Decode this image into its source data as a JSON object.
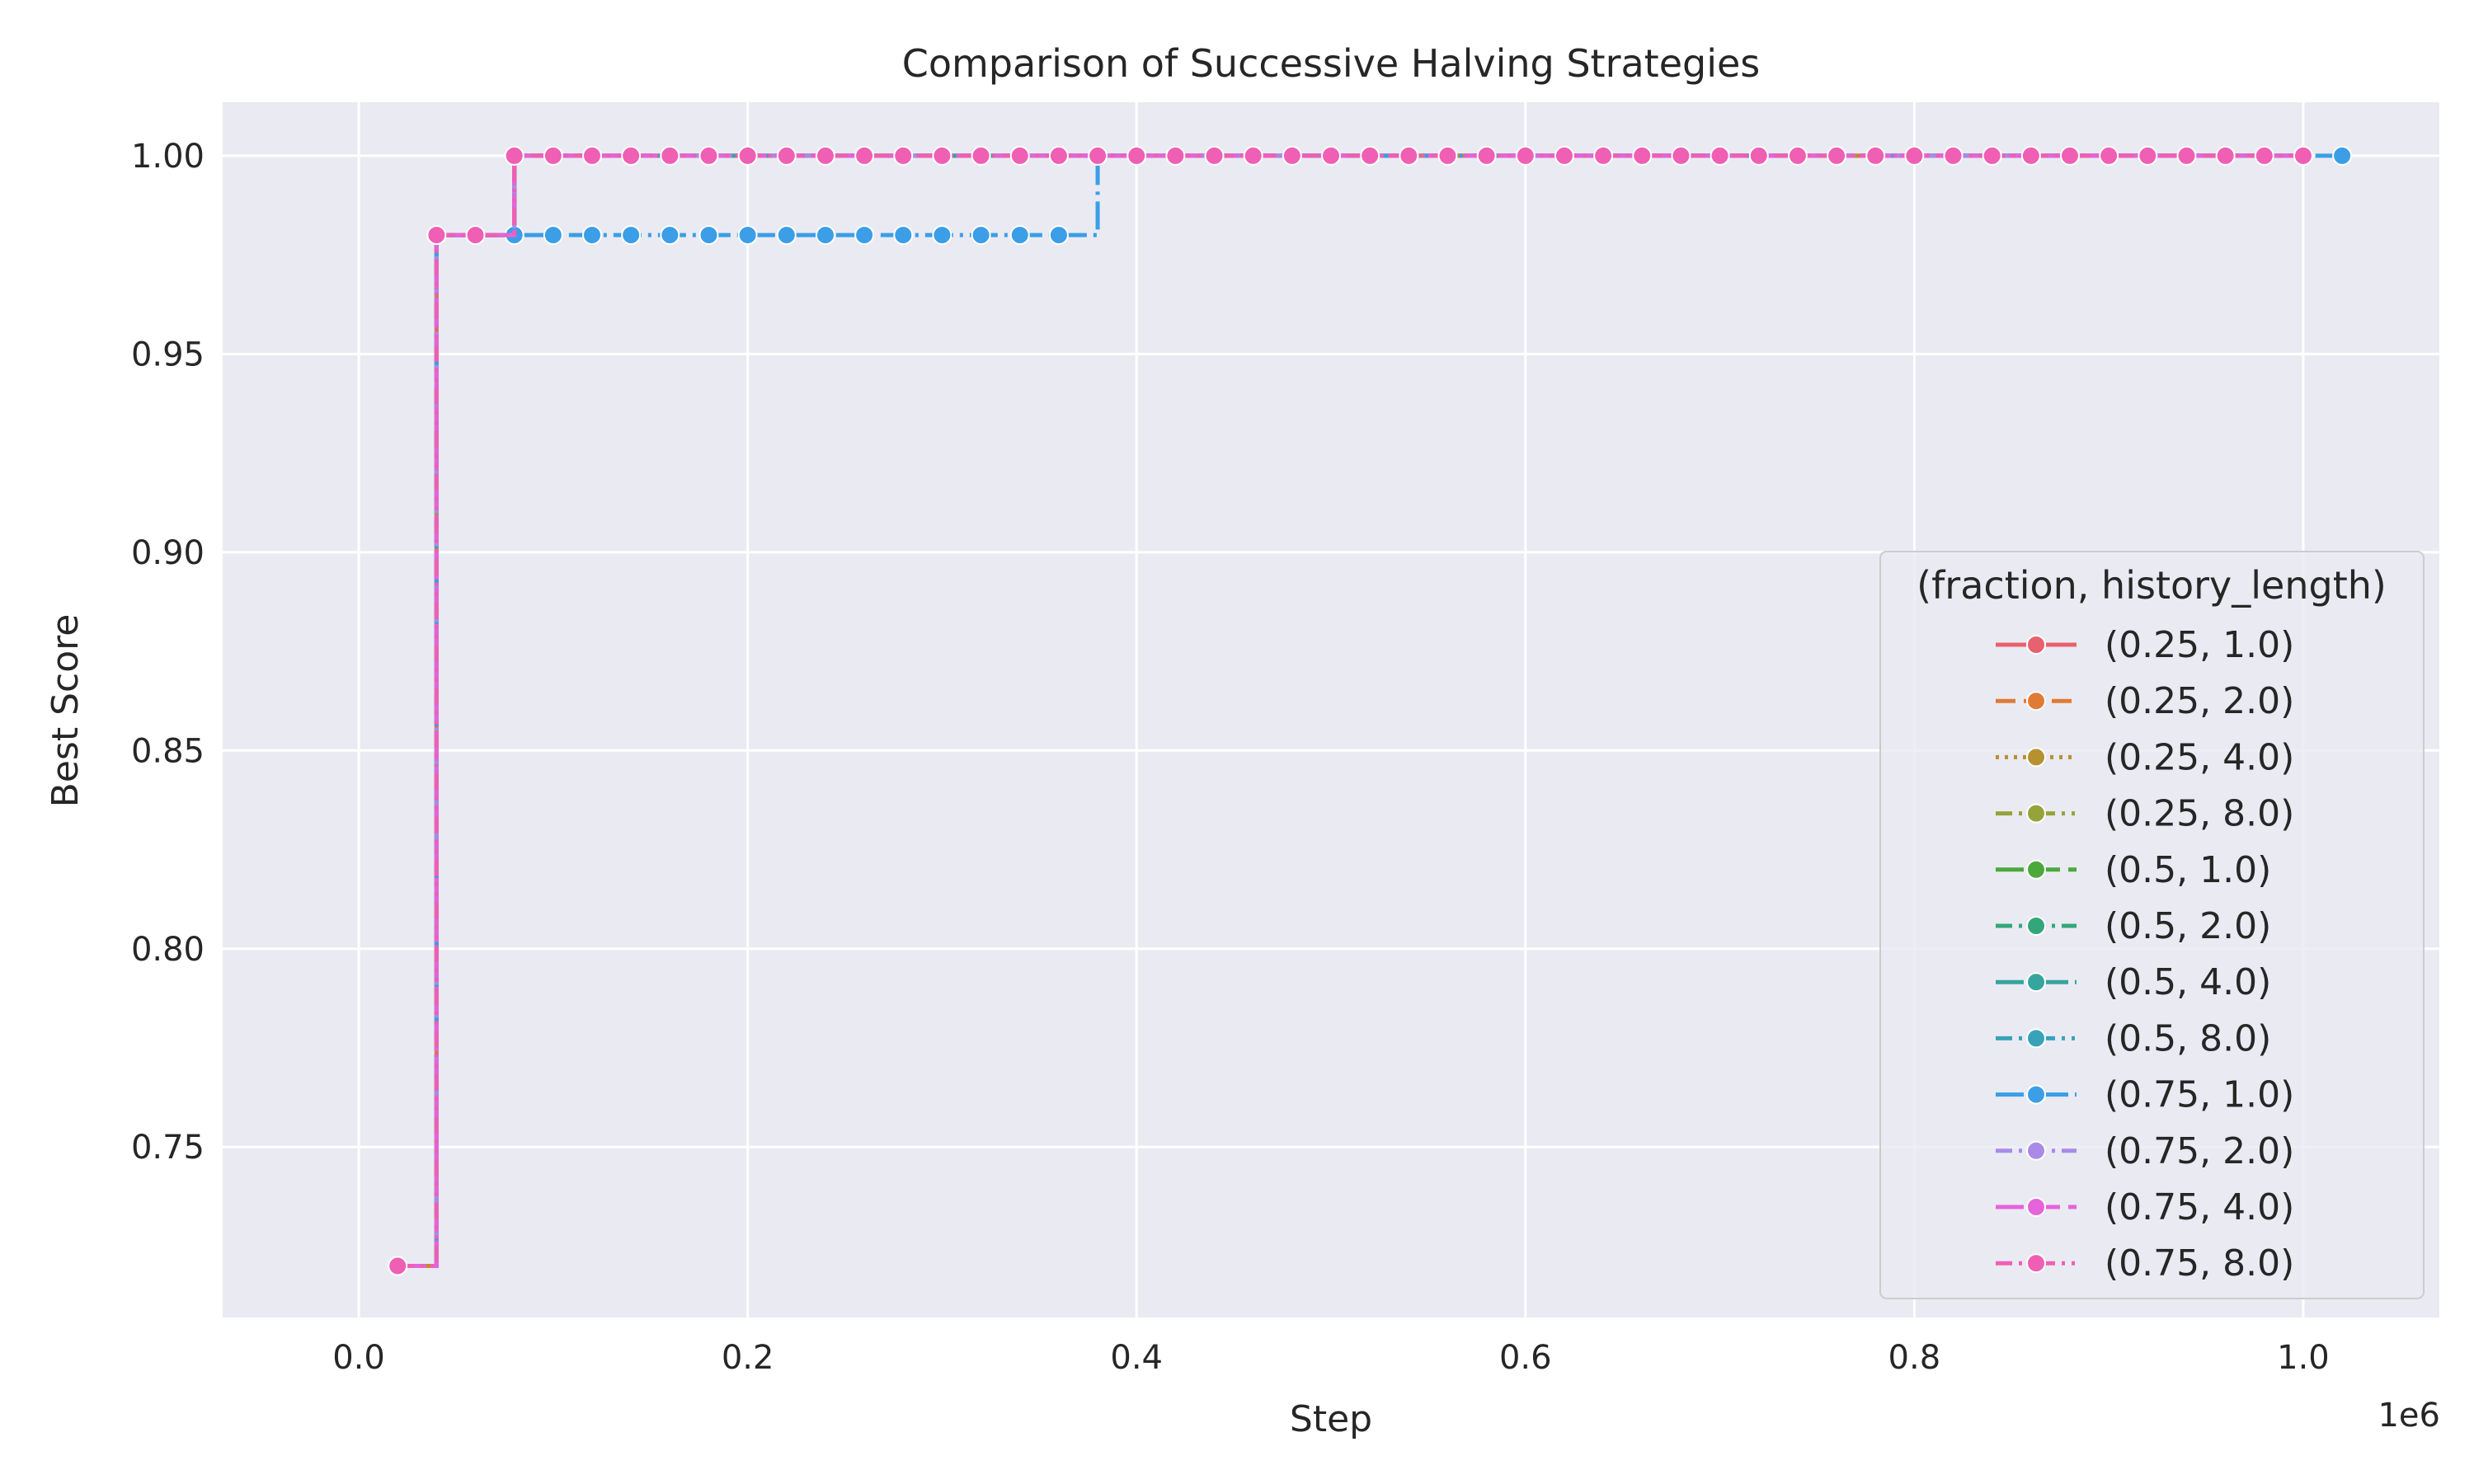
{
  "chart_data": {
    "type": "line",
    "title": "Comparison of Successive Halving Strategies",
    "xlabel": "Step",
    "ylabel": "Best Score",
    "x_offset_text": "1e6",
    "xlim": [
      -70000,
      1070000
    ],
    "ylim": [
      0.707,
      1.0135
    ],
    "x_ticks": [
      0,
      200000,
      400000,
      600000,
      800000,
      1000000
    ],
    "x_tick_labels": [
      "0.0",
      "0.2",
      "0.4",
      "0.6",
      "0.8",
      "1.0"
    ],
    "y_ticks": [
      0.75,
      0.8,
      0.85,
      0.9,
      0.95,
      1.0
    ],
    "y_tick_labels": [
      "0.75",
      "0.80",
      "0.85",
      "0.90",
      "0.95",
      "1.00"
    ],
    "grid": true,
    "background": "#eaeaf2",
    "legend": {
      "title": "(fraction, history_length)",
      "placement": "lower-right"
    },
    "series": [
      {
        "name": "(0.25, 1.0)",
        "color": "#e8616e",
        "dash": "solid",
        "x": [
          20000,
          40000,
          80000,
          1000000
        ],
        "y": [
          0.72,
          0.98,
          1.0,
          1.0
        ]
      },
      {
        "name": "(0.25, 2.0)",
        "color": "#e07b35",
        "dash": "dash",
        "x": [
          20000,
          40000,
          80000,
          1000000
        ],
        "y": [
          0.72,
          0.98,
          1.0,
          1.0
        ]
      },
      {
        "name": "(0.25, 4.0)",
        "color": "#b5922f",
        "dash": "dot",
        "x": [
          20000,
          40000,
          80000,
          1000000
        ],
        "y": [
          0.72,
          0.98,
          1.0,
          1.0
        ]
      },
      {
        "name": "(0.25, 8.0)",
        "color": "#96a33a",
        "dash": "dashdotdot",
        "x": [
          20000,
          40000,
          80000,
          1000000
        ],
        "y": [
          0.72,
          0.98,
          1.0,
          1.0
        ]
      },
      {
        "name": "(0.5, 1.0)",
        "color": "#4aa93a",
        "dash": "longdash",
        "x": [
          20000,
          40000,
          80000,
          1000000
        ],
        "y": [
          0.72,
          0.98,
          1.0,
          1.0
        ]
      },
      {
        "name": "(0.5, 2.0)",
        "color": "#33a77a",
        "dash": "dashdot",
        "x": [
          20000,
          40000,
          80000,
          1000000
        ],
        "y": [
          0.72,
          0.98,
          1.0,
          1.0
        ]
      },
      {
        "name": "(0.5, 4.0)",
        "color": "#35a59d",
        "dash": "longdashdot",
        "x": [
          20000,
          40000,
          80000,
          1000000
        ],
        "y": [
          0.72,
          0.98,
          1.0,
          1.0
        ]
      },
      {
        "name": "(0.5, 8.0)",
        "color": "#38a3b8",
        "dash": "dashdotdot",
        "x": [
          20000,
          40000,
          80000,
          1000000
        ],
        "y": [
          0.72,
          0.98,
          1.0,
          1.0
        ]
      },
      {
        "name": "(0.75, 1.0)",
        "color": "#3b9ee6",
        "dash": "longdashdot",
        "x": [
          20000,
          40000,
          60000,
          80000,
          100000,
          120000,
          140000,
          160000,
          180000,
          200000,
          220000,
          240000,
          260000,
          280000,
          300000,
          320000,
          340000,
          360000,
          380000,
          400000,
          1020000
        ],
        "y": [
          0.72,
          0.98,
          0.98,
          0.98,
          0.98,
          0.98,
          0.98,
          0.98,
          0.98,
          0.98,
          0.98,
          0.98,
          0.98,
          0.98,
          0.98,
          0.98,
          0.98,
          0.98,
          1.0,
          1.0,
          1.0
        ]
      },
      {
        "name": "(0.75, 2.0)",
        "color": "#a88be6",
        "dash": "dashdot",
        "x": [
          20000,
          40000,
          80000,
          1000000
        ],
        "y": [
          0.72,
          0.98,
          1.0,
          1.0
        ]
      },
      {
        "name": "(0.75, 4.0)",
        "color": "#e563db",
        "dash": "longdash",
        "x": [
          20000,
          40000,
          80000,
          1000000
        ],
        "y": [
          0.72,
          0.98,
          1.0,
          1.0
        ]
      },
      {
        "name": "(0.75, 8.0)",
        "color": "#ef5fb4",
        "dash": "dashdotdot",
        "x": [
          20000,
          40000,
          60000,
          80000,
          100000,
          120000,
          140000,
          160000,
          180000,
          200000,
          220000,
          240000,
          260000,
          280000,
          300000,
          320000,
          340000,
          360000,
          380000,
          400000,
          420000,
          440000,
          460000,
          480000,
          500000,
          520000,
          540000,
          560000,
          580000,
          600000,
          620000,
          640000,
          660000,
          680000,
          700000,
          720000,
          740000,
          760000,
          780000,
          800000,
          820000,
          840000,
          860000,
          880000,
          900000,
          920000,
          940000,
          960000,
          980000,
          1000000
        ],
        "y": [
          0.72,
          0.98,
          0.98,
          1.0,
          1.0,
          1.0,
          1.0,
          1.0,
          1.0,
          1.0,
          1.0,
          1.0,
          1.0,
          1.0,
          1.0,
          1.0,
          1.0,
          1.0,
          1.0,
          1.0,
          1.0,
          1.0,
          1.0,
          1.0,
          1.0,
          1.0,
          1.0,
          1.0,
          1.0,
          1.0,
          1.0,
          1.0,
          1.0,
          1.0,
          1.0,
          1.0,
          1.0,
          1.0,
          1.0,
          1.0,
          1.0,
          1.0,
          1.0,
          1.0,
          1.0,
          1.0,
          1.0,
          1.0,
          1.0,
          1.0
        ]
      }
    ]
  }
}
